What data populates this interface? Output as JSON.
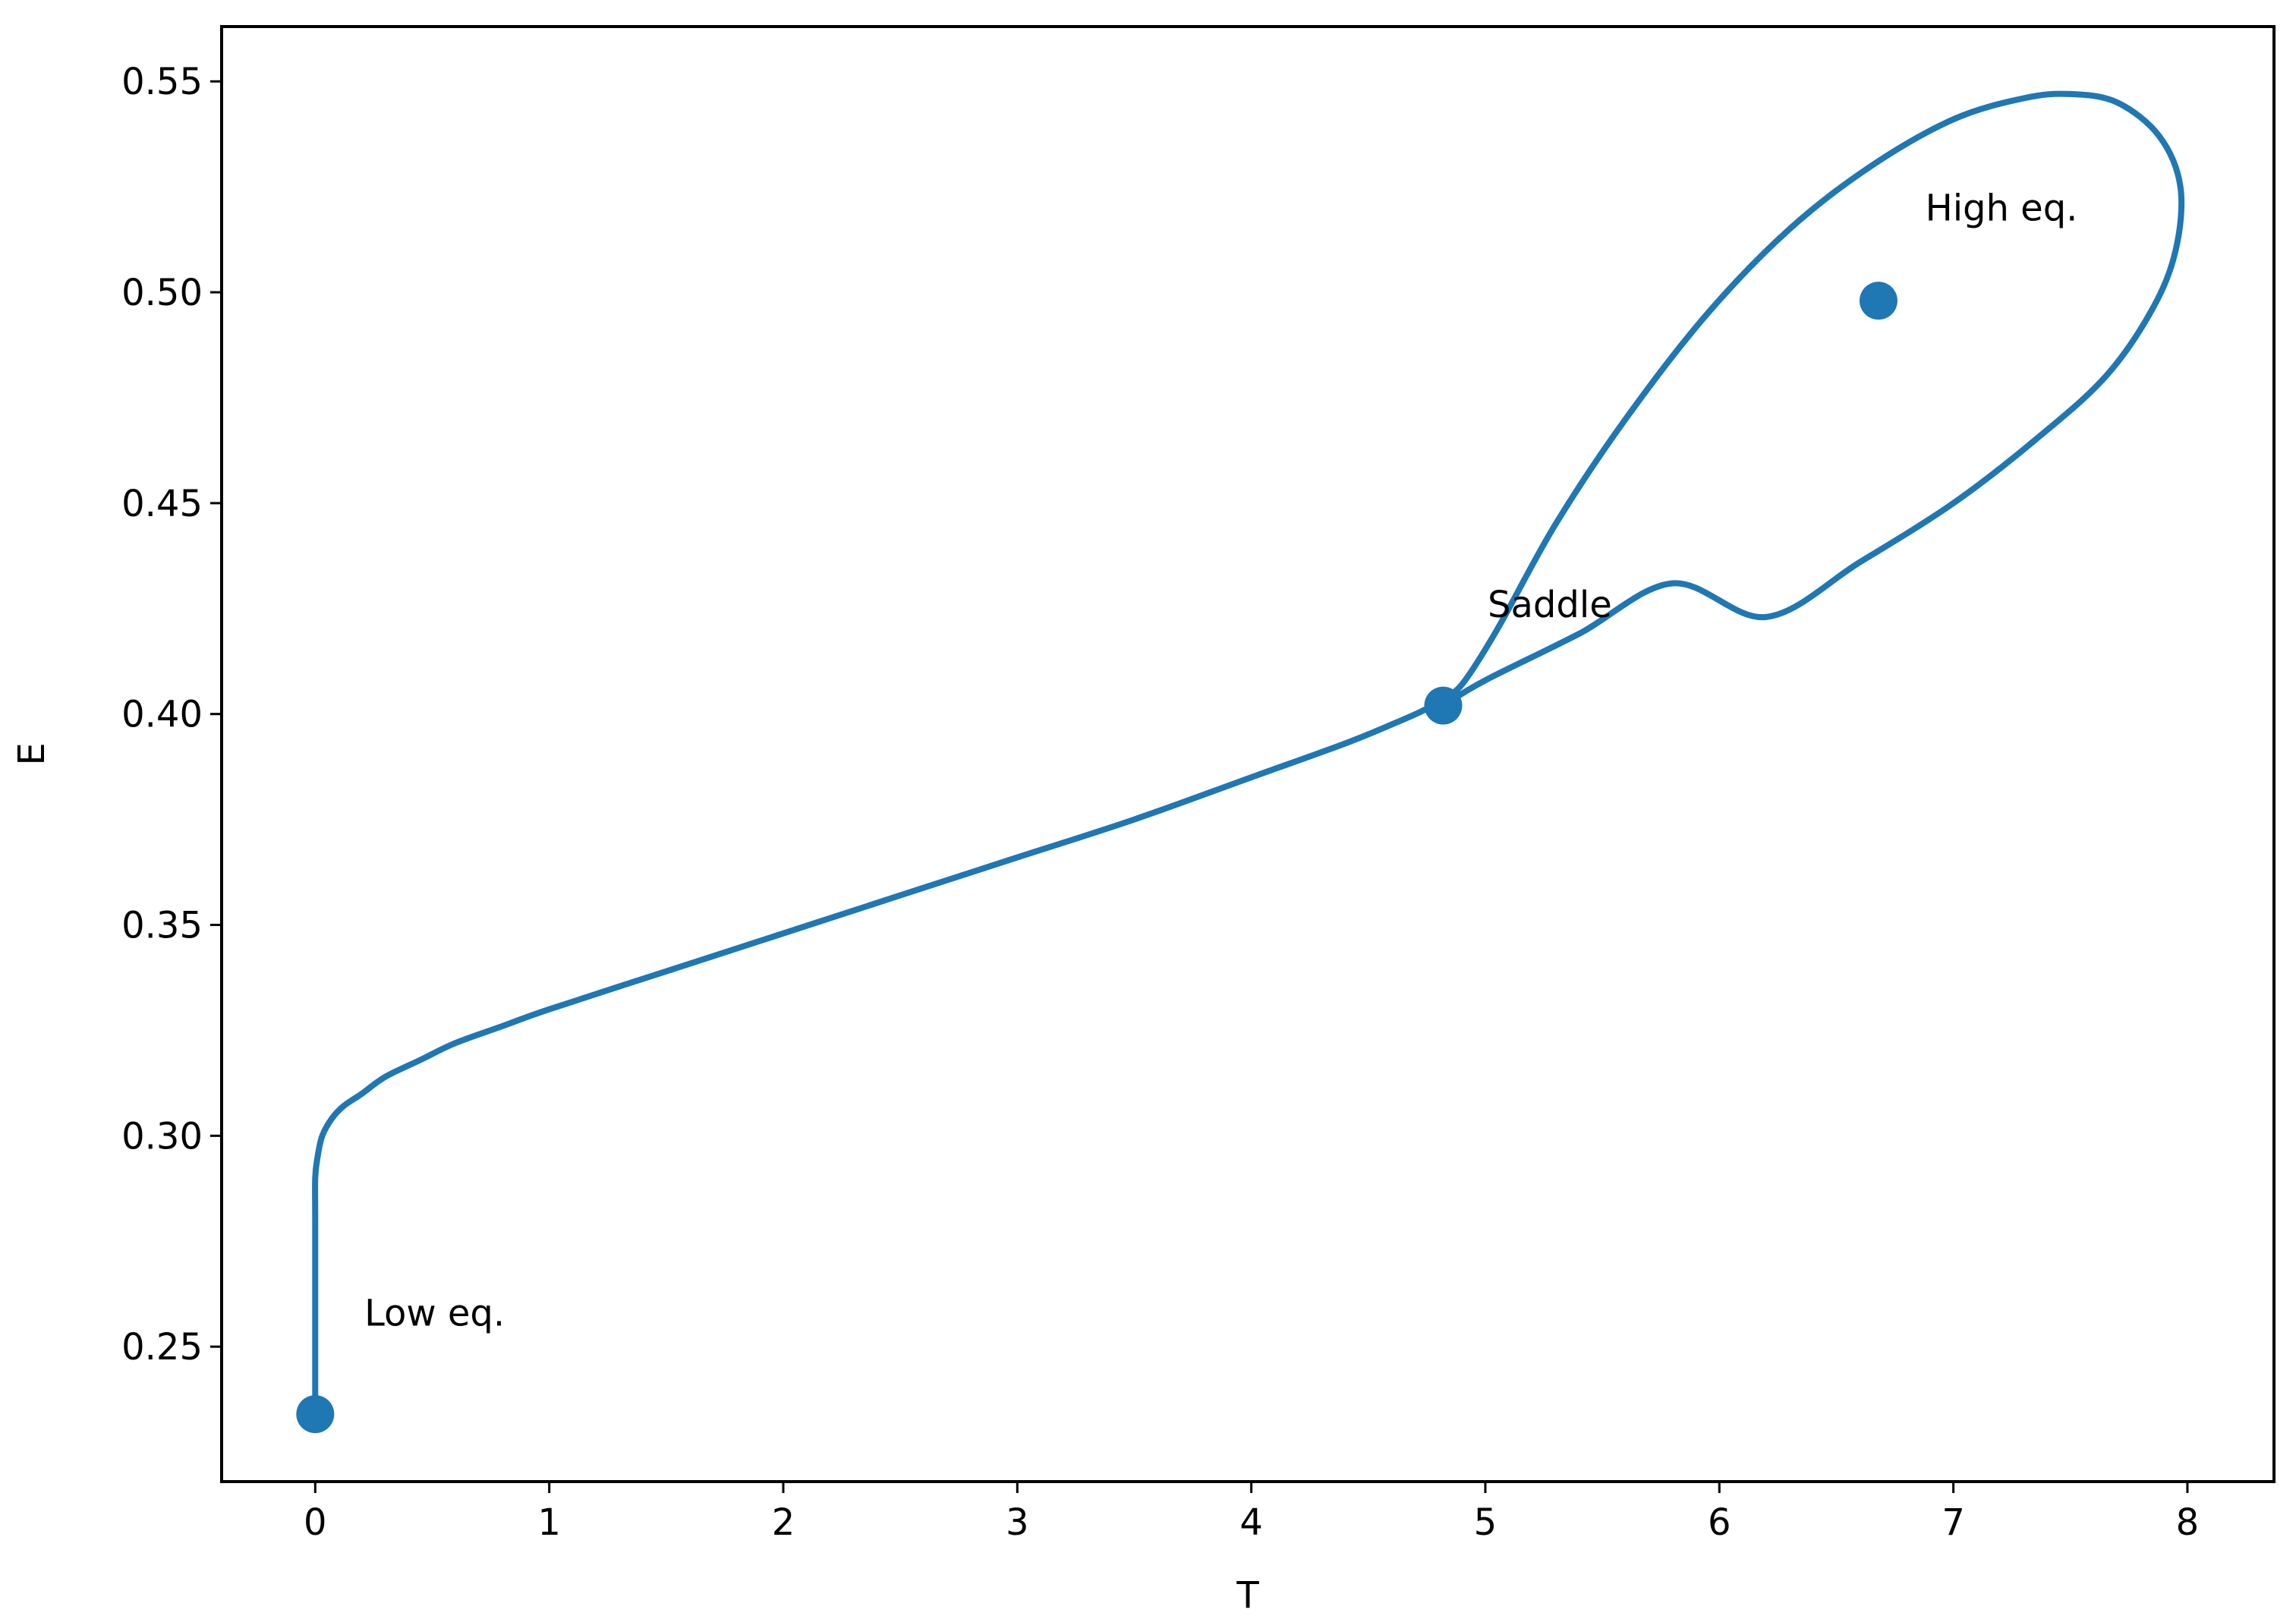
{
  "chart_data": {
    "type": "line",
    "title": "",
    "xlabel": "T",
    "ylabel": "E",
    "xlim": [
      -0.4,
      8.37
    ],
    "ylim": [
      0.218,
      0.563
    ],
    "x_ticks": [
      0,
      1,
      2,
      3,
      4,
      5,
      6,
      7,
      8
    ],
    "y_ticks": [
      0.25,
      0.3,
      0.35,
      0.4,
      0.45,
      0.5,
      0.55
    ],
    "x_tick_labels": [
      "0",
      "1",
      "2",
      "3",
      "4",
      "5",
      "6",
      "7",
      "8"
    ],
    "y_tick_labels": [
      "0.25",
      "0.30",
      "0.35",
      "0.40",
      "0.45",
      "0.50",
      "0.55"
    ],
    "grid": false,
    "color": "#1f77b4",
    "series": [
      {
        "x": [
          0.0,
          0.0,
          0.0,
          0.0,
          0.01,
          0.03,
          0.07,
          0.12,
          0.2,
          0.3,
          0.45,
          0.6,
          0.8,
          1.0,
          1.5,
          2.0,
          2.5,
          3.0,
          3.5,
          4.0,
          4.4,
          4.62,
          4.74,
          4.82,
          4.9,
          5.05,
          5.3,
          5.6,
          5.95,
          6.3,
          6.65,
          7.0,
          7.3,
          7.5,
          7.7,
          7.88,
          7.97,
          7.95,
          7.85,
          7.65,
          7.35,
          7.0,
          6.6,
          6.2,
          5.8,
          5.4,
          5.0,
          4.82
        ],
        "y": [
          0.234,
          0.26,
          0.28,
          0.29,
          0.295,
          0.3,
          0.304,
          0.307,
          0.31,
          0.314,
          0.318,
          0.322,
          0.326,
          0.33,
          0.339,
          0.348,
          0.357,
          0.366,
          0.375,
          0.385,
          0.393,
          0.398,
          0.401,
          0.404,
          0.407,
          0.42,
          0.445,
          0.47,
          0.495,
          0.515,
          0.53,
          0.541,
          0.546,
          0.547,
          0.545,
          0.537,
          0.525,
          0.51,
          0.496,
          0.48,
          0.465,
          0.45,
          0.436,
          0.423,
          0.431,
          0.419,
          0.408,
          0.402
        ]
      }
    ],
    "points": [
      {
        "x": 0.0,
        "y": 0.234
      },
      {
        "x": 4.82,
        "y": 0.402
      },
      {
        "x": 6.68,
        "y": 0.498
      }
    ],
    "annotations": [
      {
        "text": "Low eq.",
        "x": 0.21,
        "y": 0.255
      },
      {
        "text": "Saddle",
        "x": 5.01,
        "y": 0.423
      },
      {
        "text": "High eq.",
        "x": 6.88,
        "y": 0.517
      }
    ]
  }
}
